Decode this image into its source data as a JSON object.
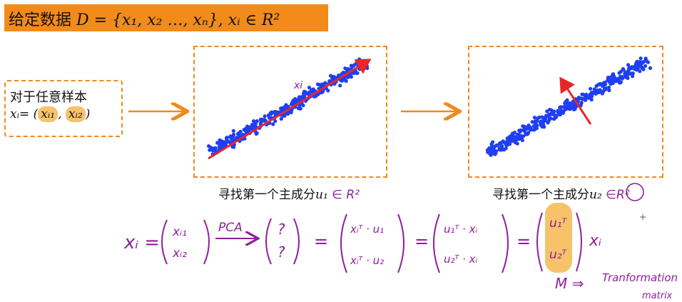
{
  "title": {
    "prefix": "给定数据 ",
    "math": "D = {x₁, x₂ …, xₙ},  xᵢ ∈ R²"
  },
  "sample": {
    "label": "对于任意样本",
    "formula_lhs": "xᵢ= (",
    "coord1": "xᵢ₁",
    "sep": ",",
    "coord2": "xᵢ₂",
    "close": ")"
  },
  "plots": [
    {
      "caption": "寻找第一个主成分",
      "vector": "u₁",
      "space": "∈ R²",
      "annotation": "xi"
    },
    {
      "caption": "寻找第一个主成分",
      "vector": "u₂",
      "space": "∈R²"
    }
  ],
  "handwriting": {
    "lhs": "xᵢ =",
    "v1": [
      "xᵢ₁",
      "xᵢ₂"
    ],
    "arrow_label": "PCA",
    "v2": [
      "?",
      "?"
    ],
    "v3": [
      "xᵢᵀ · u₁",
      "xᵢᵀ · u₂"
    ],
    "v4": [
      "u₁ᵀ · xᵢ",
      "u₂ᵀ · xᵢ"
    ],
    "v5": [
      "u₁ᵀ",
      "u₂ᵀ"
    ],
    "rhs": "xᵢ",
    "eq": "=",
    "M_label": "M ⇒",
    "note_line1": "Tranformation",
    "note_line2": "matrix"
  },
  "colors": {
    "banner": "#f28b1a",
    "dashed_border": "#f08a1a",
    "points": "#1f3ff0",
    "vector": "#e8262a",
    "handwriting": "#8e1f9c",
    "highlight": "#f6c26a"
  }
}
